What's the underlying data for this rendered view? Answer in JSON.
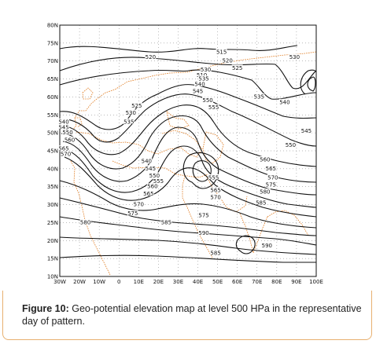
{
  "figure": {
    "label": "Figure 10:",
    "text": "Geo-potential elevation map at level 500 HPa in the representative day of pattern."
  },
  "map": {
    "lat_ticks": [
      "80N",
      "75N",
      "70N",
      "65N",
      "60N",
      "55N",
      "50N",
      "45N",
      "40N",
      "35N",
      "30N",
      "25N",
      "20N",
      "15N",
      "10N"
    ],
    "lon_ticks": [
      "30W",
      "20W",
      "10W",
      "0",
      "10E",
      "20E",
      "30E",
      "40E",
      "50E",
      "60E",
      "70E",
      "80E",
      "90E",
      "100E"
    ],
    "lon_range": [
      -30,
      100
    ],
    "lat_range": [
      10,
      80
    ],
    "grid": "dotted",
    "contour_color": "#111111",
    "coastline_color": "#e07b20",
    "contour_labels": [
      {
        "text": "515",
        "lon": 52,
        "lat": 72.5
      },
      {
        "text": "520",
        "lon": 16,
        "lat": 71
      },
      {
        "text": "520",
        "lon": 55,
        "lat": 70
      },
      {
        "text": "525",
        "lon": 60,
        "lat": 68
      },
      {
        "text": "530",
        "lon": 44,
        "lat": 67.5
      },
      {
        "text": "530",
        "lon": 89,
        "lat": 71
      },
      {
        "text": "510",
        "lon": 42,
        "lat": 66
      },
      {
        "text": "535",
        "lon": 43,
        "lat": 65
      },
      {
        "text": "540",
        "lon": 41,
        "lat": 63.5
      },
      {
        "text": "545",
        "lon": 40,
        "lat": 61.5
      },
      {
        "text": "535",
        "lon": 71,
        "lat": 60
      },
      {
        "text": "540",
        "lon": 84,
        "lat": 58.5
      },
      {
        "text": "550",
        "lon": 45,
        "lat": 59
      },
      {
        "text": "555",
        "lon": 48,
        "lat": 57
      },
      {
        "text": "525",
        "lon": 9,
        "lat": 57.5
      },
      {
        "text": "530",
        "lon": 6,
        "lat": 55.5
      },
      {
        "text": "535",
        "lon": 5,
        "lat": 53
      },
      {
        "text": "540",
        "lon": -28,
        "lat": 53
      },
      {
        "text": "545",
        "lon": -28,
        "lat": 51.5
      },
      {
        "text": "550",
        "lon": -26,
        "lat": 50
      },
      {
        "text": "560",
        "lon": -25,
        "lat": 48
      },
      {
        "text": "565",
        "lon": -28,
        "lat": 45.5
      },
      {
        "text": "570",
        "lon": -27,
        "lat": 44
      },
      {
        "text": "545",
        "lon": 95,
        "lat": 50.5
      },
      {
        "text": "550",
        "lon": 87,
        "lat": 46.5
      },
      {
        "text": "540",
        "lon": 14,
        "lat": 42
      },
      {
        "text": "545",
        "lon": 16,
        "lat": 40
      },
      {
        "text": "550",
        "lon": 18,
        "lat": 38
      },
      {
        "text": "555",
        "lon": 20,
        "lat": 36.5
      },
      {
        "text": "560",
        "lon": 17,
        "lat": 35
      },
      {
        "text": "565",
        "lon": 15,
        "lat": 33
      },
      {
        "text": "555",
        "lon": 48,
        "lat": 37.5
      },
      {
        "text": "560",
        "lon": 74,
        "lat": 42.5
      },
      {
        "text": "565",
        "lon": 77,
        "lat": 40
      },
      {
        "text": "570",
        "lon": 78,
        "lat": 37.5
      },
      {
        "text": "575",
        "lon": 77,
        "lat": 35.5
      },
      {
        "text": "580",
        "lon": 74,
        "lat": 33.5
      },
      {
        "text": "585",
        "lon": 72,
        "lat": 30.5
      },
      {
        "text": "565",
        "lon": 49,
        "lat": 34
      },
      {
        "text": "570",
        "lon": 49,
        "lat": 32
      },
      {
        "text": "570",
        "lon": 10,
        "lat": 30
      },
      {
        "text": "575",
        "lon": 7,
        "lat": 27.5
      },
      {
        "text": "575",
        "lon": 43,
        "lat": 27
      },
      {
        "text": "580",
        "lon": -17,
        "lat": 25
      },
      {
        "text": "585",
        "lon": 24,
        "lat": 25
      },
      {
        "text": "590",
        "lon": 43,
        "lat": 22
      },
      {
        "text": "590",
        "lon": 75,
        "lat": 18.5
      },
      {
        "text": "585",
        "lon": 49,
        "lat": 16.5
      }
    ]
  }
}
